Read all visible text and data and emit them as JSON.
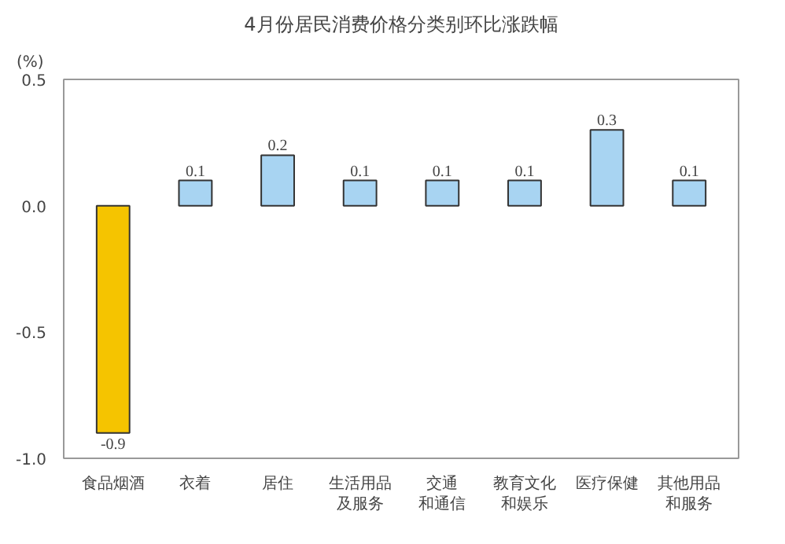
{
  "chart_data": {
    "type": "bar",
    "title": "4月份居民消费价格分类别环比涨跌幅",
    "ylabel": "(%)",
    "categories": [
      "食品烟酒",
      "衣着",
      "居住",
      "生活用品及服务",
      "交通和通信",
      "教育文化和娱乐",
      "医疗保健",
      "其他用品和服务"
    ],
    "values": [
      -0.9,
      0.1,
      0.2,
      0.1,
      0.1,
      0.1,
      0.3,
      0.1
    ],
    "colors": [
      "#f5c400",
      "#a8d4f2",
      "#a8d4f2",
      "#a8d4f2",
      "#a8d4f2",
      "#a8d4f2",
      "#a8d4f2",
      "#a8d4f2"
    ],
    "ylim": [
      -1.0,
      0.5
    ],
    "yticks": [
      {
        "value": -1.0,
        "label": "-1.0"
      },
      {
        "value": -0.5,
        "label": "-0.5"
      },
      {
        "value": 0.0,
        "label": "0.0"
      },
      {
        "value": 0.5,
        "label": "0.5"
      }
    ],
    "data_labels": true
  }
}
